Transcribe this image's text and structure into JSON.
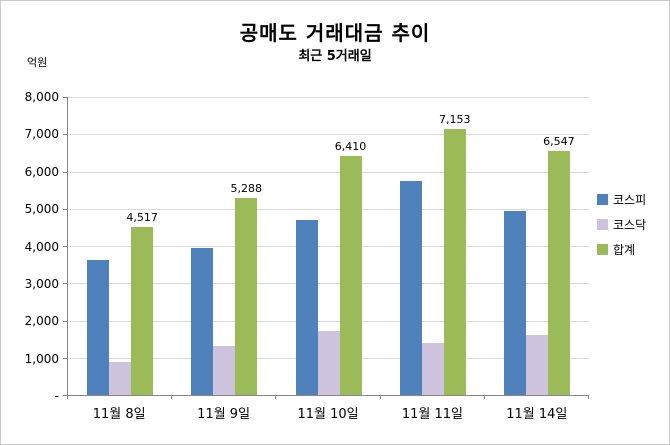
{
  "chart_data": {
    "type": "bar",
    "title": "공매도 거래대금 추이",
    "subtitle": "최근 5거래일",
    "unit_label": "억원",
    "categories": [
      "11월 8일",
      "11월 9일",
      "11월 10일",
      "11월 11일",
      "11월 14일"
    ],
    "series": [
      {
        "name": "코스피",
        "color": "#4f81bd",
        "values": [
          3620,
          3960,
          4690,
          5745,
          4935
        ],
        "show_labels": false
      },
      {
        "name": "코스닥",
        "color": "#cdc3dd",
        "values": [
          897,
          1328,
          1720,
          1408,
          1612
        ],
        "show_labels": false
      },
      {
        "name": "합계",
        "color": "#9bbb59",
        "values": [
          4517,
          5288,
          6410,
          7153,
          6547
        ],
        "show_labels": true
      }
    ],
    "data_labels": [
      "4,517",
      "5,288",
      "6,410",
      "7,153",
      "6,547"
    ],
    "ylim": [
      0,
      8000
    ],
    "ytick_step": 1000,
    "ytick_labels": [
      "8,000",
      "7,000",
      "6,000",
      "5,000",
      "4,000",
      "3,000",
      "2,000",
      "1,000",
      "-"
    ],
    "grid": true,
    "legend_position": "right"
  }
}
